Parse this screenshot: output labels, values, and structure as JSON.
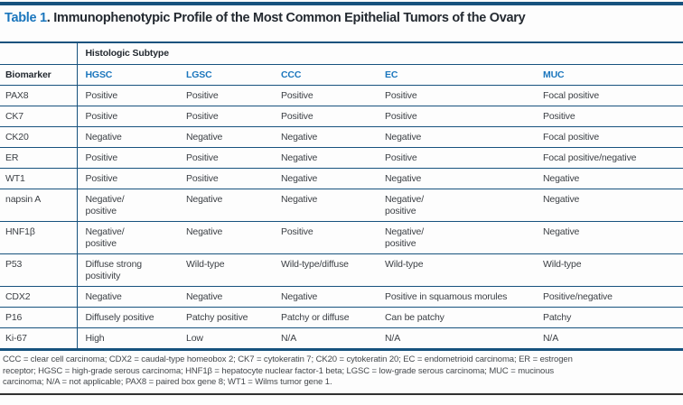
{
  "title": {
    "label": "Table 1",
    "rest": ". Immunophenotypic Profile of the Most Common Epithelial Tumors of the Ovary"
  },
  "table": {
    "group_header": "Histologic Subtype",
    "columns": [
      "Biomarker",
      "HGSC",
      "LGSC",
      "CCC",
      "EC",
      "MUC"
    ],
    "rows": [
      {
        "biomarker": "PAX8",
        "values": [
          "Positive",
          "Positive",
          "Positive",
          "Positive",
          "Focal positive"
        ]
      },
      {
        "biomarker": "CK7",
        "values": [
          "Positive",
          "Positive",
          "Positive",
          "Positive",
          "Positive"
        ]
      },
      {
        "biomarker": "CK20",
        "values": [
          "Negative",
          "Negative",
          "Negative",
          "Negative",
          "Focal positive"
        ]
      },
      {
        "biomarker": "ER",
        "values": [
          "Positive",
          "Positive",
          "Negative",
          "Positive",
          "Focal positive/negative"
        ]
      },
      {
        "biomarker": "WT1",
        "values": [
          "Positive",
          "Positive",
          "Negative",
          "Negative",
          "Negative"
        ]
      },
      {
        "biomarker": "napsin A",
        "values": [
          "Negative/\npositive",
          "Negative",
          "Negative",
          "Negative/\npositive",
          "Negative"
        ]
      },
      {
        "biomarker": "HNF1β",
        "values": [
          "Negative/\npositive",
          "Negative",
          "Positive",
          "Negative/\npositive",
          "Negative"
        ]
      },
      {
        "biomarker": "P53",
        "values": [
          "Diffuse strong\npositivity",
          "Wild-type",
          "Wild-type/diffuse",
          "Wild-type",
          "Wild-type"
        ]
      },
      {
        "biomarker": "CDX2",
        "values": [
          "Negative",
          "Negative",
          "Negative",
          "Positive in squamous morules",
          "Positive/negative"
        ]
      },
      {
        "biomarker": "P16",
        "values": [
          "Diffusely positive",
          "Patchy positive",
          "Patchy or diffuse",
          "Can be patchy",
          "Patchy"
        ]
      },
      {
        "biomarker": "Ki-67",
        "values": [
          "High",
          "Low",
          "N/A",
          "N/A",
          "N/A"
        ]
      }
    ]
  },
  "footnote": "CCC = clear cell carcinoma; CDX2 = caudal-type homeobox 2; CK7 = cytokeratin 7; CK20 = cytokeratin 20; EC = endometrioid carcinoma; ER = estrogen\nreceptor; HGSC = high-grade serous carcinoma; HNF1β = hepatocyte nuclear factor-1 beta; LGSC = low-grade serous carcinoma; MUC = mucinous\ncarcinoma; N/A = not applicable; PAX8 = paired box gene 8; WT1 = Wilms tumor gene 1.",
  "colors": {
    "accent_blue": "#1b76bd",
    "rule_navy": "#17527e",
    "dark_text": "#242a31",
    "cell_text": "#3b3f44",
    "footnote_text": "#45494d",
    "bottom_rule": "#313131"
  }
}
